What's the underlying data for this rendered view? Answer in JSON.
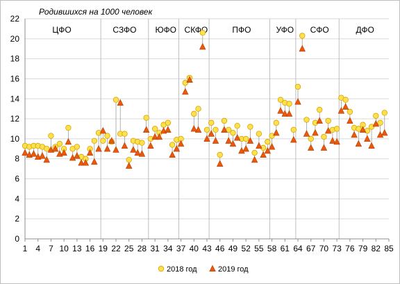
{
  "chart_data": {
    "type": "scatter",
    "title": "Родившихся на 1000 человек",
    "xlabel": "",
    "ylabel": "",
    "ylim": [
      0,
      22
    ],
    "yticks": [
      0,
      2,
      4,
      6,
      8,
      10,
      12,
      14,
      16,
      18,
      20,
      22
    ],
    "xlim": [
      1,
      85
    ],
    "xticks": [
      1,
      4,
      7,
      10,
      13,
      16,
      19,
      22,
      25,
      28,
      31,
      34,
      37,
      40,
      43,
      46,
      49,
      52,
      55,
      58,
      61,
      64,
      67,
      70,
      73,
      76,
      79,
      82,
      85
    ],
    "grid": "horizontal",
    "legend_position": "bottom",
    "regions": [
      {
        "label": "ЦФО",
        "x_start": 1,
        "x_end": 18
      },
      {
        "label": "СЗФО",
        "x_start": 19,
        "x_end": 29
      },
      {
        "label": "ЮФО",
        "x_start": 30,
        "x_end": 37
      },
      {
        "label": "СКФО",
        "x_start": 37,
        "x_end": 44
      },
      {
        "label": "ПФО",
        "x_start": 44,
        "x_end": 58
      },
      {
        "label": "УФО",
        "x_start": 58,
        "x_end": 64
      },
      {
        "label": "СФО",
        "x_start": 64,
        "x_end": 74
      },
      {
        "label": "ДФО",
        "x_start": 74,
        "x_end": 85
      }
    ],
    "region_separators": [
      18.5,
      29.5,
      36.5,
      43.5,
      57.5,
      63.5,
      73.5
    ],
    "series": [
      {
        "name": "2018 год",
        "marker": "circle",
        "color": "#FFE14D",
        "stroke": "#D4A300",
        "values": [
          9.3,
          9.2,
          9.3,
          9.3,
          9.2,
          9.0,
          10.3,
          9.2,
          9.5,
          9.0,
          11.1,
          9.0,
          9.2,
          8.2,
          8.0,
          9.0,
          9.8,
          10.6,
          9.8,
          10.3,
          9.7,
          13.9,
          10.5,
          10.5,
          7.9,
          9.8,
          9.7,
          9.6,
          12.1,
          10.0,
          11.0,
          10.6,
          11.4,
          11.6,
          9.4,
          9.9,
          10.0,
          15.6,
          16.1,
          12.5,
          13.0,
          20.6,
          10.9,
          11.6,
          10.9,
          8.4,
          11.8,
          10.9,
          10.6,
          11.3,
          10.0,
          10.0,
          11.2,
          8.6,
          10.5,
          9.1,
          9.7,
          10.3,
          11.6,
          13.9,
          13.6,
          13.5,
          10.9,
          15.2,
          20.3,
          11.9,
          10.0,
          11.6,
          12.9,
          10.2,
          11.8,
          10.9,
          11.0,
          14.1,
          13.9,
          12.7,
          11.1,
          11.0,
          11.4,
          10.8,
          11.2,
          12.3,
          11.6,
          12.6
        ]
      },
      {
        "name": "2019 год",
        "marker": "triangle",
        "color": "#E8590C",
        "stroke": "#B83E00",
        "values": [
          8.6,
          8.4,
          8.5,
          8.2,
          8.3,
          7.9,
          8.9,
          9.0,
          8.5,
          8.6,
          9.7,
          8.1,
          8.3,
          7.6,
          7.6,
          8.6,
          7.7,
          9.0,
          10.8,
          9.0,
          9.8,
          8.9,
          13.6,
          9.3,
          7.3,
          8.9,
          8.6,
          8.5,
          10.9,
          9.3,
          10.2,
          10.2,
          10.8,
          10.9,
          8.4,
          9.0,
          9.5,
          14.7,
          15.9,
          11.0,
          10.9,
          19.2,
          10.0,
          10.5,
          9.8,
          7.5,
          10.9,
          9.8,
          9.5,
          10.1,
          8.8,
          9.0,
          9.8,
          7.9,
          9.3,
          8.4,
          8.8,
          9.2,
          10.6,
          12.8,
          12.5,
          12.5,
          9.9,
          13.7,
          19.0,
          10.5,
          9.1,
          10.6,
          11.8,
          9.1,
          10.8,
          9.8,
          9.7,
          12.8,
          13.2,
          11.8,
          10.4,
          9.5,
          10.9,
          10.0,
          9.3,
          11.5,
          10.4,
          10.6
        ]
      }
    ]
  }
}
